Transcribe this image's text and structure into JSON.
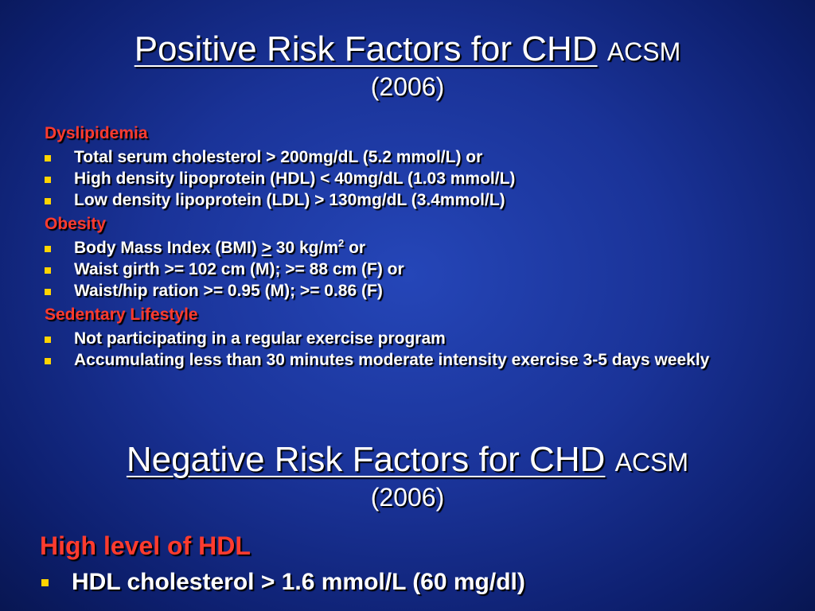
{
  "slide": {
    "top_title": {
      "main": "Positive Risk Factors for CHD",
      "source": "ACSM",
      "year": "(2006)"
    },
    "positive_sections": [
      {
        "heading": "Dyslipidemia",
        "items": [
          "Total serum cholesterol > 200mg/dL  (5.2 mmol/L) or",
          "High density lipoprotein (HDL)  < 40mg/dL  (1.03 mmol/L)",
          "Low density lipoprotein (LDL) > 130mg/dL  (3.4mmol/L)"
        ]
      },
      {
        "heading": "Obesity",
        "bmi_item": {
          "prefix": "Body Mass Index (BMI) ",
          "ge": ">",
          "value": " 30 kg/m",
          "exponent": "2",
          "suffix": " or"
        },
        "items": [
          "Waist girth >= 102 cm (M); >= 88 cm (F) or",
          "Waist/hip ration >= 0.95 (M); >= 0.86 (F)"
        ]
      },
      {
        "heading": "Sedentary Lifestyle",
        "items": [
          "Not participating in a regular exercise program",
          "Accumulating less than 30 minutes moderate intensity exercise 3-5 days weekly"
        ]
      }
    ],
    "bottom_title": {
      "main": "Negative Risk Factors for CHD",
      "source": "ACSM",
      "year": "(2006)"
    },
    "negative_section": {
      "heading": "High level of HDL",
      "items": [
        "HDL cholesterol > 1.6 mmol/L (60 mg/dl)"
      ]
    }
  },
  "colors": {
    "background": "#1a3398",
    "heading": "#ff3b2e",
    "bullet": "#ffd400",
    "text": "#ffffff"
  }
}
